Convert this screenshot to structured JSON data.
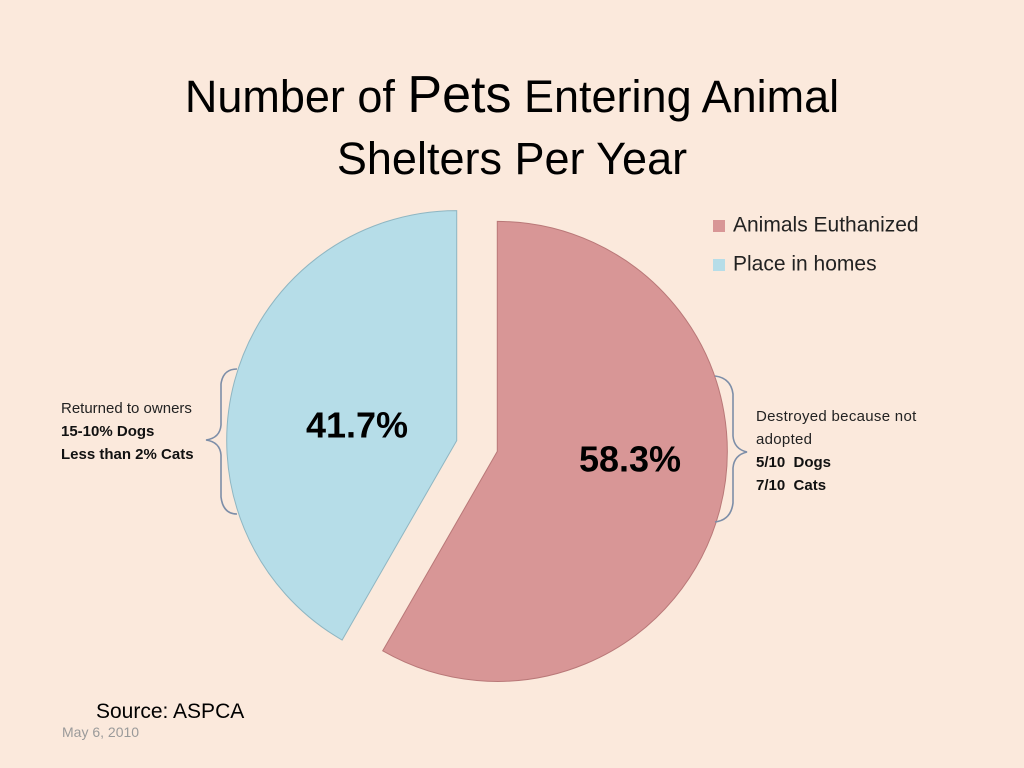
{
  "slide": {
    "title_part1": "Number of ",
    "title_emph": "Pets",
    "title_part2": " Entering Animal",
    "title_line2": "Shelters Per Year",
    "source": "Source: ASPCA",
    "date": "May 6, 2010"
  },
  "chart_data": {
    "type": "pie",
    "title": "Number of Pets Entering Animal Shelters Per Year",
    "categories": [
      "Animals Euthanized",
      "Place in homes"
    ],
    "values": [
      58.3,
      41.7
    ],
    "data_labels": [
      "58.3%",
      "41.7%"
    ],
    "colors": [
      "#d89696",
      "#b6dde8"
    ],
    "exploded": true,
    "legend_position": "top-right",
    "legend": [
      "Animals Euthanized",
      "Place in homes"
    ]
  },
  "notes": {
    "left": {
      "line1": "Returned to owners",
      "line2": "15-10% Dogs",
      "line3": "Less than 2% Cats"
    },
    "right": {
      "line1": "Destroyed because not",
      "line2": "adopted",
      "line3": "5/10  Dogs",
      "line4": "7/10  Cats"
    }
  },
  "colors": {
    "background": "#fbe9dc",
    "brace": "#7d8ea8"
  }
}
